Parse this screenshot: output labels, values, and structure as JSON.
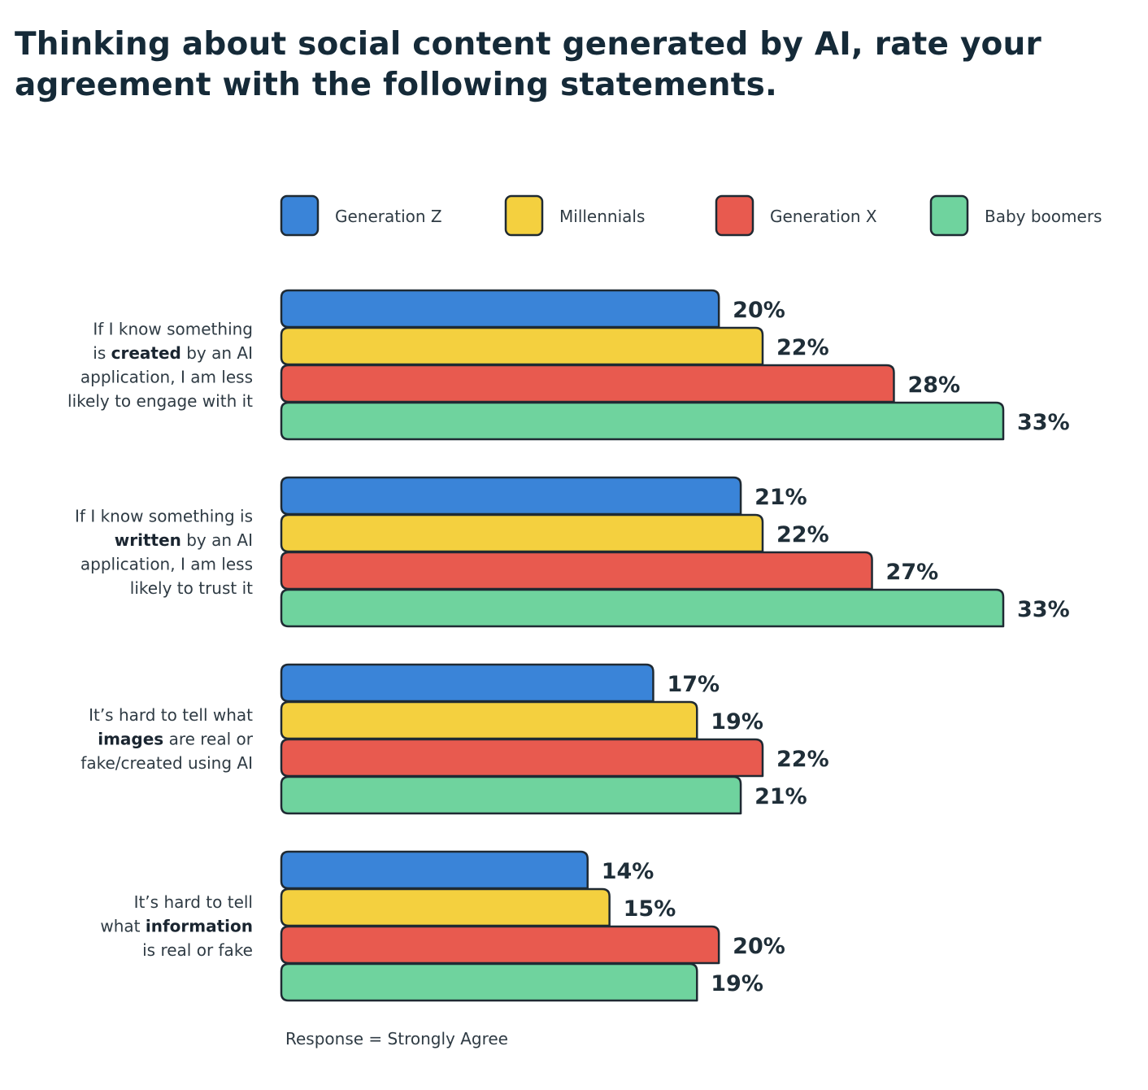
{
  "title": "Thinking about social content generated by AI, rate your agreement with the following statements.",
  "chart_data": {
    "type": "bar",
    "orientation": "horizontal",
    "title": "Thinking about social content generated by AI, rate your agreement with the following statements.",
    "categories": [
      {
        "parts": [
          {
            "text": "If I know something",
            "bold": false,
            "line": 0
          },
          {
            "text": "is ",
            "bold": false,
            "line": 1
          },
          {
            "text": "created",
            "bold": true,
            "line": 1
          },
          {
            "text": " by an AI",
            "bold": false,
            "line": 1
          },
          {
            "text": "application, I am less",
            "bold": false,
            "line": 2
          },
          {
            "text": "likely to engage with it",
            "bold": false,
            "line": 3
          }
        ]
      },
      {
        "parts": [
          {
            "text": "If I know something is",
            "bold": false,
            "line": 0
          },
          {
            "text": "written",
            "bold": true,
            "line": 1
          },
          {
            "text": " by an AI",
            "bold": false,
            "line": 1
          },
          {
            "text": "application, I am less",
            "bold": false,
            "line": 2
          },
          {
            "text": "likely to trust it",
            "bold": false,
            "line": 3
          }
        ]
      },
      {
        "parts": [
          {
            "text": "It’s hard to tell what",
            "bold": false,
            "line": 0
          },
          {
            "text": "images",
            "bold": true,
            "line": 1
          },
          {
            "text": " are real or",
            "bold": false,
            "line": 1
          },
          {
            "text": "fake/created using AI",
            "bold": false,
            "line": 2
          }
        ]
      },
      {
        "parts": [
          {
            "text": "It’s hard to tell",
            "bold": false,
            "line": 0
          },
          {
            "text": "what ",
            "bold": false,
            "line": 1
          },
          {
            "text": "information",
            "bold": true,
            "line": 1
          },
          {
            "text": "is real or fake",
            "bold": false,
            "line": 2
          }
        ]
      }
    ],
    "series": [
      {
        "name": "Generation Z",
        "color": "#3a84d8",
        "values": [
          20,
          21,
          17,
          14
        ]
      },
      {
        "name": "Millennials",
        "color": "#f4d03f",
        "values": [
          22,
          22,
          19,
          15
        ]
      },
      {
        "name": "Generation X",
        "color": "#e85a4f",
        "values": [
          28,
          27,
          22,
          20
        ]
      },
      {
        "name": "Baby boomers",
        "color": "#6fd39e",
        "values": [
          33,
          33,
          21,
          19
        ]
      }
    ],
    "value_suffix": "%",
    "legend_position": "top",
    "grid": false,
    "xlim": [
      0,
      33
    ],
    "footnote": "Response = Strongly Agree"
  }
}
